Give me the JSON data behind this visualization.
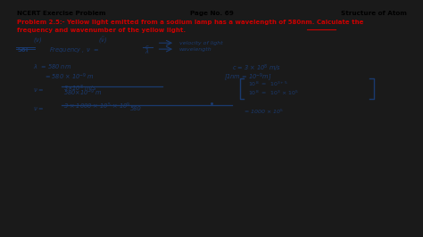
{
  "background_color": "#f0ede0",
  "outer_bg": "#1a1a1a",
  "header_left": "NCERT Exercise Problem",
  "header_center": "Page No. 69",
  "header_right": "Structure of Atom",
  "problem_color": "#cc0000",
  "ink_color": "#1a3a6e",
  "header_color": "#000000",
  "figsize": [
    4.74,
    2.66
  ],
  "dpi": 100
}
